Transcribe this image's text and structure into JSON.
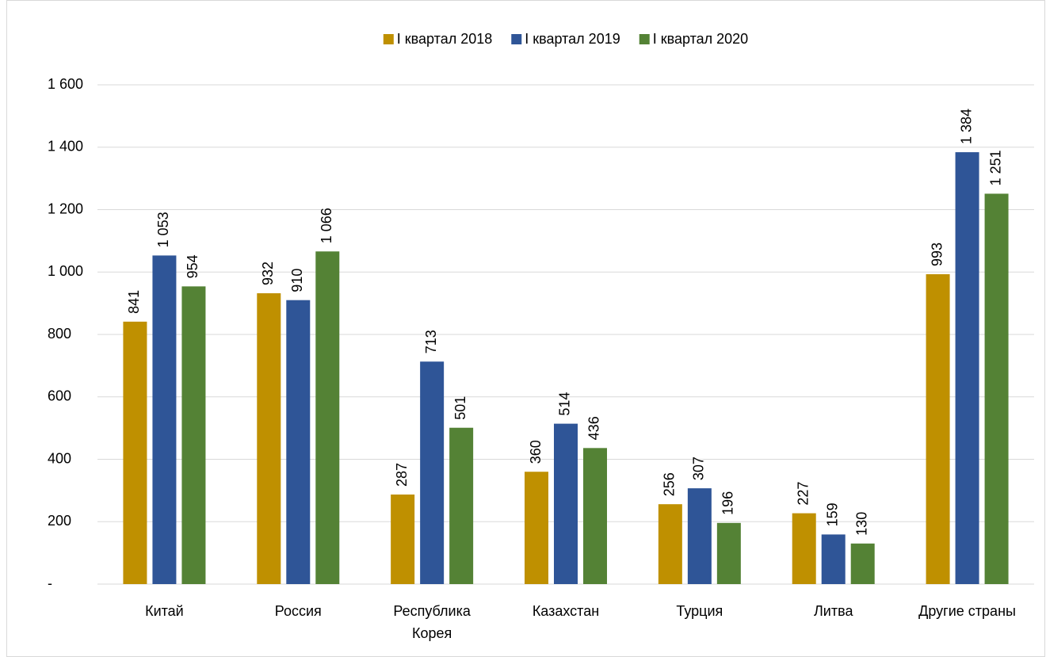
{
  "chart_data": {
    "type": "bar",
    "categories": [
      "Китай",
      "Россия",
      "Республика Корея",
      "Казахстан",
      "Турция",
      "Литва",
      "Другие страны"
    ],
    "series": [
      {
        "name": "I квартал 2018",
        "color": "#bf9000",
        "values": [
          841,
          932,
          287,
          360,
          256,
          227,
          993
        ],
        "value_labels": [
          "841",
          "932",
          "287",
          "360",
          "256",
          "227",
          "993"
        ]
      },
      {
        "name": "I квартал 2019",
        "color": "#2f5597",
        "values": [
          1053,
          910,
          713,
          514,
          307,
          159,
          1384
        ],
        "value_labels": [
          "1 053",
          "910",
          "713",
          "514",
          "307",
          "159",
          "1 384"
        ]
      },
      {
        "name": "I квартал 2020",
        "color": "#548235",
        "values": [
          954,
          1066,
          501,
          436,
          196,
          130,
          1251
        ],
        "value_labels": [
          "954",
          "1 066",
          "501",
          "436",
          "196",
          "130",
          "1 251"
        ]
      }
    ],
    "ylim": [
      0,
      1600
    ],
    "yticks": [
      {
        "value": 0,
        "label": "-"
      },
      200,
      400,
      600,
      800,
      {
        "value": 1000,
        "label": "1 000"
      },
      {
        "value": 1200,
        "label": "1 200"
      },
      {
        "value": 1400,
        "label": "1 400"
      },
      {
        "value": 1600,
        "label": "1 600"
      }
    ],
    "grid": true,
    "legend": "top"
  }
}
